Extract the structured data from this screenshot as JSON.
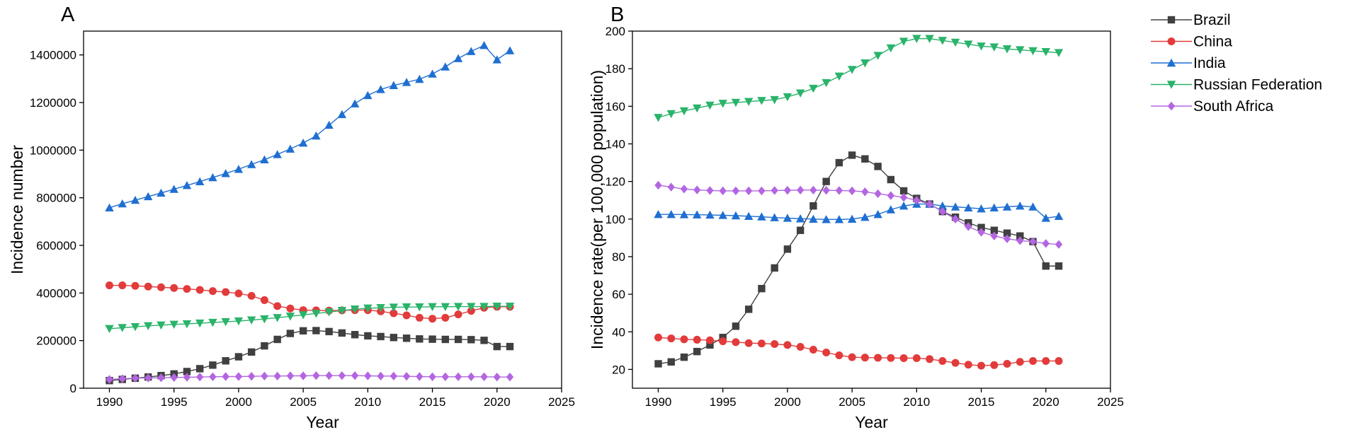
{
  "series_colors": {
    "Brazil": "#404040",
    "China": "#e23b3b",
    "India": "#1f6fd1",
    "Russian Federation": "#2ab36a",
    "South Africa": "#b366e0"
  },
  "series_markers": {
    "Brazil": "square",
    "China": "circle",
    "India": "triangle-up",
    "Russian Federation": "triangle-down",
    "South Africa": "diamond"
  },
  "legend": {
    "entries": [
      "Brazil",
      "China",
      "India",
      "Russian Federation",
      "South Africa"
    ]
  },
  "chart_data": [
    {
      "panel": "A",
      "type": "line",
      "title": "",
      "xlabel": "Year",
      "ylabel": "Incidence number",
      "xlim": [
        1988,
        2025
      ],
      "ylim": [
        0,
        1500000
      ],
      "xticks": [
        1990,
        1995,
        2000,
        2005,
        2010,
        2015,
        2020,
        2025
      ],
      "yticks": [
        0,
        200000,
        400000,
        600000,
        800000,
        1000000,
        1200000,
        1400000
      ],
      "x": [
        1990,
        1991,
        1992,
        1993,
        1994,
        1995,
        1996,
        1997,
        1998,
        1999,
        2000,
        2001,
        2002,
        2003,
        2004,
        2005,
        2006,
        2007,
        2008,
        2009,
        2010,
        2011,
        2012,
        2013,
        2014,
        2015,
        2016,
        2017,
        2018,
        2019,
        2020,
        2021
      ],
      "series": [
        {
          "name": "Brazil",
          "values": [
            32000,
            37000,
            42000,
            47000,
            53000,
            60000,
            70000,
            82000,
            97000,
            115000,
            132000,
            152000,
            178000,
            205000,
            230000,
            241000,
            242000,
            238000,
            232000,
            225000,
            220000,
            217000,
            213000,
            210000,
            207000,
            206000,
            205000,
            205000,
            204000,
            201000,
            175000,
            175000
          ]
        },
        {
          "name": "China",
          "values": [
            432000,
            432000,
            430000,
            427000,
            424000,
            421000,
            417000,
            413000,
            408000,
            404000,
            398000,
            388000,
            370000,
            345000,
            335000,
            328000,
            327000,
            326000,
            327000,
            328000,
            328000,
            323000,
            315000,
            306000,
            296000,
            292000,
            296000,
            310000,
            325000,
            338000,
            342000,
            342000
          ]
        },
        {
          "name": "India",
          "values": [
            758000,
            775000,
            790000,
            805000,
            820000,
            836000,
            852000,
            868000,
            885000,
            902000,
            920000,
            940000,
            960000,
            982000,
            1005000,
            1030000,
            1060000,
            1105000,
            1150000,
            1195000,
            1230000,
            1255000,
            1272000,
            1285000,
            1298000,
            1320000,
            1350000,
            1385000,
            1415000,
            1440000,
            1380000,
            1418000
          ]
        },
        {
          "name": "Russian Federation",
          "values": [
            250000,
            254000,
            258000,
            262000,
            265000,
            268000,
            270000,
            273000,
            276000,
            279000,
            282000,
            286000,
            291000,
            296000,
            302000,
            308000,
            314000,
            320000,
            326000,
            332000,
            336000,
            338000,
            340000,
            341000,
            341000,
            342000,
            342000,
            343000,
            343000,
            343000,
            344000,
            344000
          ]
        },
        {
          "name": "South Africa",
          "values": [
            37000,
            40000,
            42000,
            43000,
            44000,
            45000,
            46000,
            47000,
            48000,
            49000,
            49000,
            50000,
            51000,
            51000,
            52000,
            52000,
            53000,
            53000,
            53000,
            53000,
            52000,
            51000,
            51000,
            50000,
            49000,
            48000,
            48000,
            48000,
            48000,
            48000,
            47000,
            47000
          ]
        }
      ]
    },
    {
      "panel": "B",
      "type": "line",
      "title": "",
      "xlabel": "Year",
      "ylabel": "Incidence rate(per 100,000 population)",
      "xlim": [
        1988,
        2025
      ],
      "ylim": [
        10,
        200
      ],
      "xticks": [
        1990,
        1995,
        2000,
        2005,
        2010,
        2015,
        2020,
        2025
      ],
      "yticks": [
        20,
        40,
        60,
        80,
        100,
        120,
        140,
        160,
        180,
        200
      ],
      "x": [
        1990,
        1991,
        1992,
        1993,
        1994,
        1995,
        1996,
        1997,
        1998,
        1999,
        2000,
        2001,
        2002,
        2003,
        2004,
        2005,
        2006,
        2007,
        2008,
        2009,
        2010,
        2011,
        2012,
        2013,
        2014,
        2015,
        2016,
        2017,
        2018,
        2019,
        2020,
        2021
      ],
      "series": [
        {
          "name": "Brazil",
          "values": [
            23,
            24,
            26.5,
            29.5,
            33,
            37,
            43,
            52,
            63,
            74,
            84,
            94,
            107,
            120,
            130,
            134,
            132,
            128,
            121,
            115,
            111,
            108,
            104,
            101,
            98,
            95.5,
            94,
            92.5,
            91,
            88,
            75,
            75
          ]
        },
        {
          "name": "China",
          "values": [
            37,
            36.5,
            36,
            35.8,
            35.5,
            35,
            34.5,
            34,
            33.8,
            33.5,
            33,
            32,
            30.5,
            29,
            27.5,
            26.5,
            26.3,
            26.2,
            26.1,
            26,
            26,
            25.5,
            24.5,
            23.5,
            22.5,
            22,
            22.3,
            23,
            24,
            24.5,
            24.5,
            24.5
          ]
        },
        {
          "name": "India",
          "values": [
            102.5,
            102.5,
            102.4,
            102.3,
            102.2,
            102,
            101.8,
            101.5,
            101.2,
            100.8,
            100.5,
            100.2,
            100,
            99.8,
            99.8,
            100,
            101,
            102.5,
            105,
            107,
            108,
            108,
            107,
            106.5,
            106,
            105.5,
            106,
            106.5,
            107,
            106.5,
            100.5,
            101.5
          ]
        },
        {
          "name": "Russian Federation",
          "values": [
            154,
            156,
            157.5,
            159,
            160.5,
            161.5,
            162,
            162.5,
            163,
            163.5,
            165,
            167,
            169.5,
            172.5,
            176,
            179.5,
            183,
            187,
            191,
            194.5,
            196,
            196,
            195,
            194,
            193,
            192,
            191.5,
            190.5,
            190,
            189.5,
            189,
            188.5
          ]
        },
        {
          "name": "South Africa",
          "values": [
            118,
            117,
            116,
            115.5,
            115.2,
            115,
            115,
            115,
            115,
            115.2,
            115.3,
            115.4,
            115.4,
            115.3,
            115.2,
            115,
            114.5,
            113.5,
            112.5,
            111.5,
            110,
            108,
            104,
            100,
            96,
            93,
            91,
            89.5,
            88.5,
            88,
            87,
            86.5
          ]
        }
      ]
    }
  ]
}
